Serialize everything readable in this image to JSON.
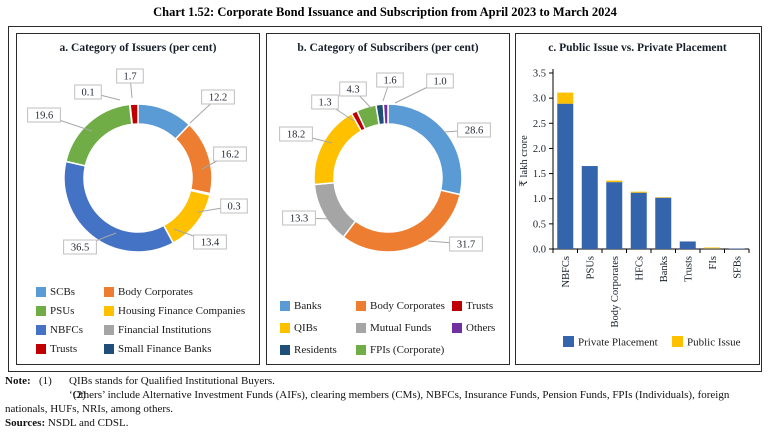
{
  "figure_title": "Chart 1.52: Corporate Bond Issuance and Subscription from April 2023 to March 2024",
  "chart_data": [
    {
      "type": "donut",
      "title": "a. Category of Issuers (per cent)",
      "unit": "per cent",
      "slices": [
        {
          "label": "SCBs",
          "value": 12.2,
          "color": "#5B9BD5"
        },
        {
          "label": "Body Corporates",
          "value": 16.2,
          "color": "#ED7D31"
        },
        {
          "label": "Financial Institutions",
          "value": 0.3,
          "color": "#A5A5A5"
        },
        {
          "label": "Housing Finance Companies",
          "value": 13.4,
          "color": "#FFC000"
        },
        {
          "label": "NBFCs",
          "value": 36.5,
          "color": "#4472C4"
        },
        {
          "label": "PSUs",
          "value": 19.6,
          "color": "#70AD47"
        },
        {
          "label": "Small Finance Banks",
          "value": 0.1,
          "color": "#1F4E79"
        },
        {
          "label": "Trusts",
          "value": 1.7,
          "color": "#C00000"
        }
      ],
      "legend_order": [
        "SCBs",
        "Body Corporates",
        "PSUs",
        "Housing Finance Companies",
        "NBFCs",
        "Financial Institutions",
        "Trusts",
        "Small Finance Banks"
      ]
    },
    {
      "type": "donut",
      "title": "b. Category of Subscribers (per cent)",
      "unit": "per cent",
      "slices": [
        {
          "label": "Banks",
          "value": 28.6,
          "color": "#5B9BD5"
        },
        {
          "label": "Body Corporates",
          "value": 31.7,
          "color": "#ED7D31"
        },
        {
          "label": "Mutual Funds",
          "value": 13.3,
          "color": "#A5A5A5"
        },
        {
          "label": "QIBs",
          "value": 18.2,
          "color": "#FFC000"
        },
        {
          "label": "Trusts",
          "value": 1.3,
          "color": "#C00000"
        },
        {
          "label": "FPIs (Corporate)",
          "value": 4.3,
          "color": "#70AD47"
        },
        {
          "label": "Residents",
          "value": 1.6,
          "color": "#1F4E79"
        },
        {
          "label": "Others",
          "value": 1.0,
          "color": "#7030A0"
        }
      ],
      "legend_order": [
        "Banks",
        "Body Corporates",
        "Trusts",
        "QIBs",
        "Mutual Funds",
        "Others",
        "Residents",
        "FPIs (Corporate)"
      ]
    },
    {
      "type": "bar",
      "title": "c. Public Issue vs. Private Placement",
      "ylabel": "₹ lakh crore",
      "categories": [
        "NBFCs",
        "PSUs",
        "Body Corporates",
        "HFCs",
        "Banks",
        "Trusts",
        "FIs",
        "SFBs"
      ],
      "series": [
        {
          "name": "Private Placement",
          "color": "#3465AC",
          "values": [
            2.89,
            1.65,
            1.33,
            1.12,
            1.02,
            0.15,
            0.01,
            0.01
          ]
        },
        {
          "name": "Public Issue",
          "color": "#FFC000",
          "values": [
            0.22,
            0,
            0.03,
            0.02,
            0.01,
            0,
            0.02,
            0
          ]
        }
      ],
      "stacked": true,
      "grid": false,
      "ylim": [
        0,
        3.5
      ],
      "yticks": [
        "0.0",
        "0.5",
        "1.0",
        "1.5",
        "2.0",
        "2.5",
        "3.0",
        "3.5"
      ],
      "legend_position": "bottom"
    }
  ],
  "notes": {
    "label": "Note:",
    "items": [
      {
        "num": "(1)",
        "text": "QIBs stands for Qualified Institutional Buyers."
      },
      {
        "num": "(2)",
        "text": "‘Others’ include Alternative Investment Funds (AIFs), clearing members (CMs), NBFCs, Insurance Funds, Pension Funds, FPIs (Individuals), foreign nationals, HUFs, NRIs, among others."
      }
    ],
    "sources_label": "Sources:",
    "sources_text": "NSDL and CDSL."
  }
}
